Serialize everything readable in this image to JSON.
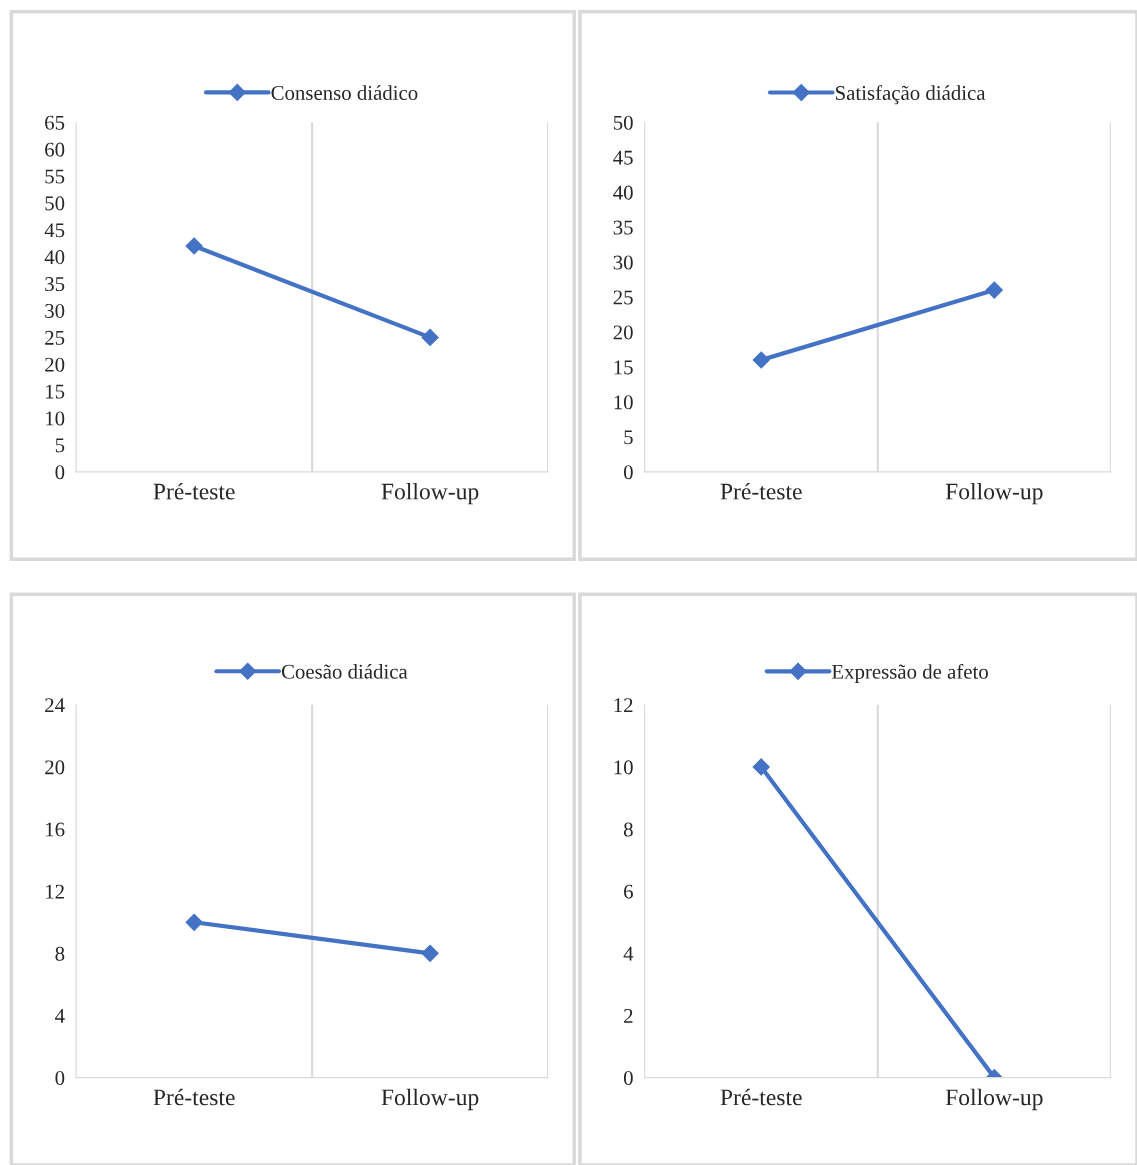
{
  "chart_data": [
    {
      "type": "line",
      "categories": [
        "Pré-teste",
        "Follow-up"
      ],
      "series": [
        {
          "name": "Consenso diádico",
          "color": "#4472c4",
          "values": [
            42,
            25
          ]
        }
      ],
      "ylim": [
        0,
        65
      ],
      "yticks": [
        0,
        5,
        10,
        15,
        20,
        25,
        30,
        35,
        40,
        45,
        50,
        55,
        60,
        65
      ],
      "grid": "x",
      "legend": "top",
      "marker": "diamond",
      "line_style": "solid"
    },
    {
      "type": "line",
      "categories": [
        "Pré-teste",
        "Follow-up"
      ],
      "series": [
        {
          "name": "Satisfação diádica",
          "color": "#4472c4",
          "values": [
            16,
            26
          ]
        }
      ],
      "ylim": [
        0,
        50
      ],
      "yticks": [
        0,
        5,
        10,
        15,
        20,
        25,
        30,
        35,
        40,
        45,
        50
      ],
      "grid": "x",
      "legend": "top",
      "marker": "diamond",
      "line_style": "solid"
    },
    {
      "type": "line",
      "categories": [
        "Pré-teste",
        "Follow-up"
      ],
      "series": [
        {
          "name": "Coesão diádica",
          "color": "#4472c4",
          "values": [
            10,
            8
          ]
        }
      ],
      "ylim": [
        0,
        24
      ],
      "yticks": [
        0,
        4,
        8,
        12,
        16,
        20,
        24
      ],
      "grid": "x",
      "legend": "top",
      "marker": "diamond",
      "line_style": "solid"
    },
    {
      "type": "line",
      "categories": [
        "Pré-teste",
        "Follow-up"
      ],
      "series": [
        {
          "name": "Expressão de afeto",
          "color": "#4472c4",
          "values": [
            10,
            0
          ]
        }
      ],
      "ylim": [
        0,
        12
      ],
      "yticks": [
        0,
        2,
        4,
        6,
        8,
        10,
        12
      ],
      "grid": "x",
      "legend": "top",
      "marker": "diamond",
      "line_style": "solid"
    }
  ]
}
